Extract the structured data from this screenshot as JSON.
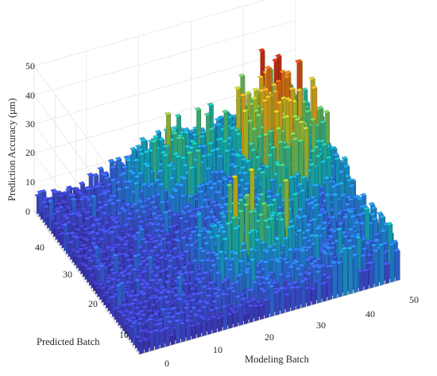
{
  "chart_data": {
    "type": "bar3d",
    "title": "",
    "xlabel": "Modeling Batch",
    "ylabel": "Predicted Batch",
    "zlabel": "Prediction Accuracy (μm)",
    "x_ticks": [
      "0",
      "10",
      "20",
      "30",
      "40",
      "50"
    ],
    "y_ticks": [
      "10",
      "20",
      "30",
      "40"
    ],
    "z_ticks": [
      "0",
      "10",
      "20",
      "30",
      "40",
      "50"
    ],
    "xlim": [
      0,
      50
    ],
    "ylim": [
      0,
      50
    ],
    "zlim": [
      0,
      50
    ],
    "grid": true,
    "colormap": "jet",
    "grid_size": [
      50,
      50
    ],
    "value_range": [
      1,
      42
    ],
    "description_of_values": "50x50 grid of bar heights; low values (about 3-10) near Modeling Batch 0, rising toward Modeling Batch 30-50 with peaks around 35-42 at high Predicted Batch"
  },
  "colors": {
    "low": "#3e26a8",
    "mid": "#2dc2a2",
    "high": "#f26b1d",
    "grid": "#e3e3e3"
  }
}
